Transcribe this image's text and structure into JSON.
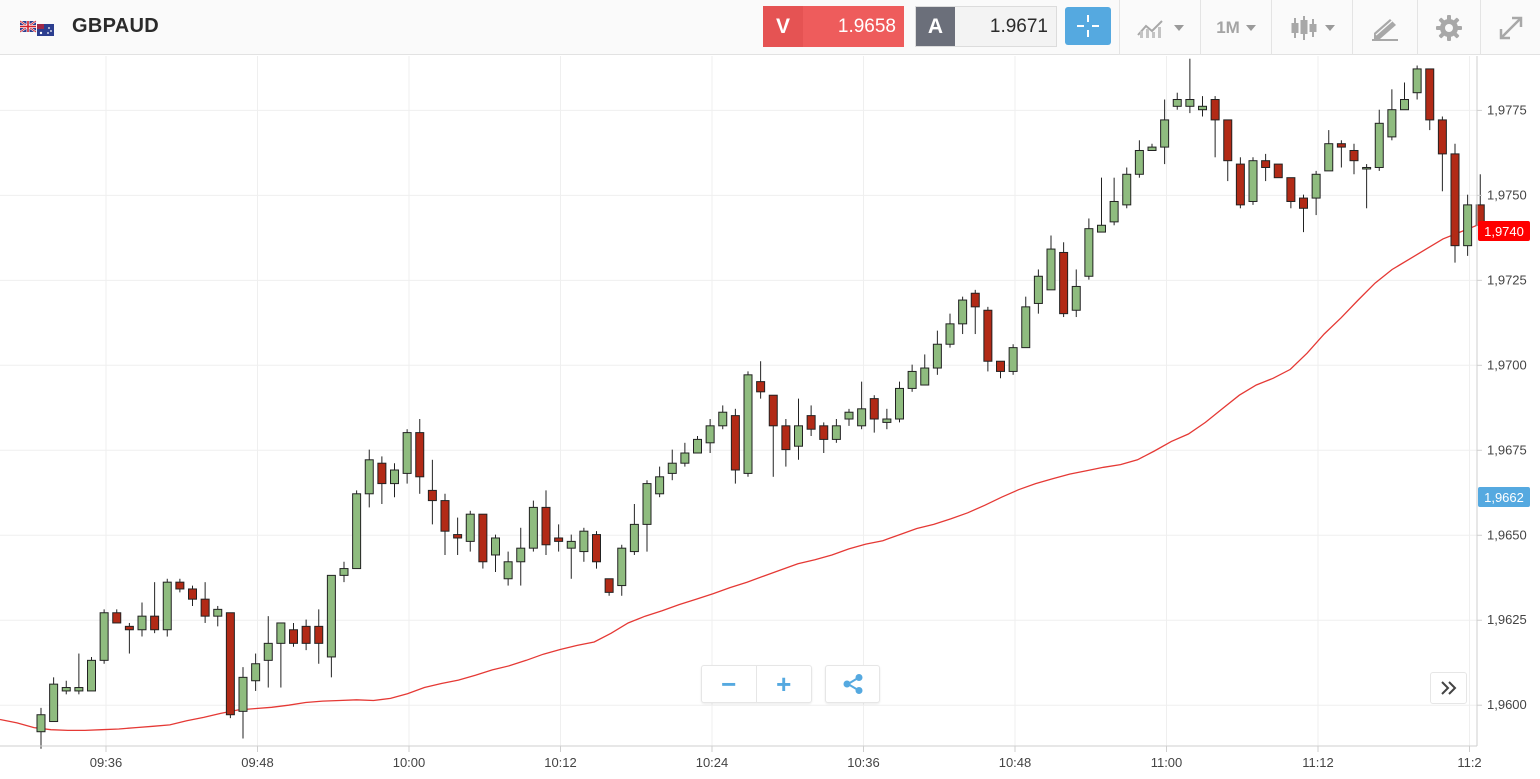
{
  "header": {
    "symbol": "GBPAUD",
    "flag_icon": "gb-au-flag-icon"
  },
  "quotes": {
    "sell": {
      "tag": "V",
      "value": "1.9658",
      "color": "#ee5c5c"
    },
    "buy": {
      "tag": "A",
      "value": "1.9671",
      "color": "#6b6f7a"
    }
  },
  "toolbar": {
    "crosshair_icon": "crosshair-icon",
    "indicators_icon": "indicators-icon",
    "timeframe": "1M",
    "chart_type_icon": "candlestick-icon",
    "drawing_icon": "drawing-tools-icon",
    "settings_icon": "gear-icon",
    "fullscreen_icon": "fullscreen-icon",
    "accent": "#55a9e0"
  },
  "badges": {
    "ma_value": "1,9740",
    "ma_color": "#ff0000",
    "current_value": "1,9662",
    "current_color": "#55a9e0"
  },
  "controls": {
    "zoom_out": "−",
    "zoom_in": "+",
    "share_icon": "share-icon",
    "scroll_end_icon": "double-chevron-right-icon"
  },
  "chart_data": {
    "type": "candlestick",
    "instrument": "GBPAUD",
    "interval": "1M",
    "y_ticks": [
      "1,9600",
      "1,9625",
      "1,9650",
      "1,9675",
      "1,9700",
      "1,9725",
      "1,9750",
      "1,9775"
    ],
    "x_ticks": [
      "09:36",
      "09:48",
      "10:00",
      "10:12",
      "10:24",
      "10:36",
      "10:48",
      "11:00",
      "11:12",
      "11:2"
    ],
    "ylim": [
      1.9588,
      1.9791
    ],
    "colors": {
      "up": "#8fbc7f",
      "down": "#b22a16",
      "ma": "#e53935"
    },
    "candles": [
      [
        1.95922,
        1.95972,
        1.95872,
        1.95992
      ],
      [
        1.95952,
        1.96062,
        1.95952,
        1.96082
      ],
      [
        1.96042,
        1.96052,
        1.96032,
        1.96072
      ],
      [
        1.96042,
        1.96052,
        1.96032,
        1.96152
      ],
      [
        1.96042,
        1.96132,
        1.96042,
        1.96142
      ],
      [
        1.96132,
        1.96272,
        1.96122,
        1.96282
      ],
      [
        1.96272,
        1.96242,
        1.96242,
        1.96282
      ],
      [
        1.96232,
        1.96222,
        1.96152,
        1.96242
      ],
      [
        1.96222,
        1.96262,
        1.96202,
        1.96302
      ],
      [
        1.96262,
        1.96222,
        1.96212,
        1.96362
      ],
      [
        1.96222,
        1.96362,
        1.96202,
        1.96372
      ],
      [
        1.96362,
        1.96342,
        1.96332,
        1.96372
      ],
      [
        1.96342,
        1.96312,
        1.96292,
        1.96352
      ],
      [
        1.96312,
        1.96262,
        1.96242,
        1.96362
      ],
      [
        1.96262,
        1.96282,
        1.96232,
        1.96292
      ],
      [
        1.96272,
        1.95972,
        1.95962,
        1.96272
      ],
      [
        1.95982,
        1.96082,
        1.95902,
        1.96112
      ],
      [
        1.96072,
        1.96122,
        1.96042,
        1.96152
      ],
      [
        1.96132,
        1.96182,
        1.96052,
        1.96262
      ],
      [
        1.96182,
        1.96242,
        1.96052,
        1.96242
      ],
      [
        1.96222,
        1.96182,
        1.96172,
        1.96242
      ],
      [
        1.96232,
        1.96182,
        1.96162,
        1.96252
      ],
      [
        1.96232,
        1.96182,
        1.96122,
        1.96282
      ],
      [
        1.96142,
        1.96382,
        1.96082,
        1.96382
      ],
      [
        1.96382,
        1.96402,
        1.96362,
        1.96422
      ],
      [
        1.96402,
        1.96622,
        1.96402,
        1.96632
      ],
      [
        1.96622,
        1.96722,
        1.96582,
        1.96752
      ],
      [
        1.96712,
        1.96652,
        1.96592,
        1.96732
      ],
      [
        1.96652,
        1.96692,
        1.96612,
        1.96712
      ],
      [
        1.96682,
        1.96802,
        1.96652,
        1.96812
      ],
      [
        1.96802,
        1.96672,
        1.96622,
        1.96842
      ],
      [
        1.96632,
        1.96602,
        1.96532,
        1.96722
      ],
      [
        1.96602,
        1.96512,
        1.96442,
        1.96622
      ],
      [
        1.96502,
        1.96492,
        1.96442,
        1.96552
      ],
      [
        1.96482,
        1.96562,
        1.96452,
        1.96572
      ],
      [
        1.96562,
        1.96422,
        1.96402,
        1.96562
      ],
      [
        1.96442,
        1.96492,
        1.96392,
        1.96502
      ],
      [
        1.96372,
        1.96422,
        1.96352,
        1.96452
      ],
      [
        1.96422,
        1.96462,
        1.96352,
        1.96522
      ],
      [
        1.96462,
        1.96582,
        1.96452,
        1.96602
      ],
      [
        1.96582,
        1.96472,
        1.96442,
        1.96632
      ],
      [
        1.96492,
        1.96482,
        1.96452,
        1.96532
      ],
      [
        1.96462,
        1.96482,
        1.96372,
        1.96502
      ],
      [
        1.96452,
        1.96512,
        1.96422,
        1.96522
      ],
      [
        1.96502,
        1.96422,
        1.96402,
        1.96512
      ],
      [
        1.96372,
        1.96332,
        1.96322,
        1.96372
      ],
      [
        1.96352,
        1.96462,
        1.96322,
        1.96472
      ],
      [
        1.96452,
        1.96532,
        1.96442,
        1.96592
      ],
      [
        1.96532,
        1.96652,
        1.96452,
        1.96662
      ],
      [
        1.96622,
        1.96672,
        1.96612,
        1.96702
      ],
      [
        1.96682,
        1.96712,
        1.96662,
        1.96752
      ],
      [
        1.96712,
        1.96742,
        1.96702,
        1.96772
      ],
      [
        1.96742,
        1.96782,
        1.96742,
        1.96792
      ],
      [
        1.96772,
        1.96822,
        1.96742,
        1.96842
      ],
      [
        1.96822,
        1.96862,
        1.96812,
        1.96882
      ],
      [
        1.96852,
        1.96692,
        1.96652,
        1.96872
      ],
      [
        1.96682,
        1.96972,
        1.96672,
        1.96982
      ],
      [
        1.96952,
        1.96922,
        1.96902,
        1.97012
      ],
      [
        1.96912,
        1.96822,
        1.96672,
        1.96912
      ],
      [
        1.96822,
        1.96752,
        1.96702,
        1.96842
      ],
      [
        1.96762,
        1.96822,
        1.96722,
        1.96902
      ],
      [
        1.96852,
        1.96812,
        1.96792,
        1.96882
      ],
      [
        1.96822,
        1.96782,
        1.96742,
        1.96832
      ],
      [
        1.96782,
        1.96822,
        1.96772,
        1.96842
      ],
      [
        1.96842,
        1.96862,
        1.96822,
        1.96872
      ],
      [
        1.96822,
        1.96872,
        1.96812,
        1.96952
      ],
      [
        1.96902,
        1.96842,
        1.96802,
        1.96912
      ],
      [
        1.96832,
        1.96842,
        1.96812,
        1.96872
      ],
      [
        1.96842,
        1.96932,
        1.96832,
        1.96952
      ],
      [
        1.96932,
        1.96982,
        1.96922,
        1.97002
      ],
      [
        1.96942,
        1.96992,
        1.96942,
        1.97032
      ],
      [
        1.96992,
        1.97062,
        1.96972,
        1.97102
      ],
      [
        1.97062,
        1.97122,
        1.97052,
        1.97152
      ],
      [
        1.97122,
        1.97192,
        1.97092,
        1.97202
      ],
      [
        1.97212,
        1.97172,
        1.97092,
        1.97222
      ],
      [
        1.97162,
        1.97012,
        1.96982,
        1.97172
      ],
      [
        1.97012,
        1.96982,
        1.96962,
        1.97012
      ],
      [
        1.96982,
        1.97052,
        1.96972,
        1.97062
      ],
      [
        1.97052,
        1.97172,
        1.97052,
        1.97202
      ],
      [
        1.97182,
        1.97262,
        1.97152,
        1.97282
      ],
      [
        1.97222,
        1.97342,
        1.97222,
        1.97382
      ],
      [
        1.97332,
        1.97152,
        1.97142,
        1.97362
      ],
      [
        1.97162,
        1.97232,
        1.97142,
        1.97282
      ],
      [
        1.97262,
        1.97402,
        1.97252,
        1.97432
      ],
      [
        1.97392,
        1.97412,
        1.97392,
        1.97552
      ],
      [
        1.97422,
        1.97482,
        1.97412,
        1.97552
      ],
      [
        1.97472,
        1.97562,
        1.97462,
        1.97582
      ],
      [
        1.97562,
        1.97632,
        1.97552,
        1.97662
      ],
      [
        1.97632,
        1.97642,
        1.97632,
        1.97652
      ],
      [
        1.97642,
        1.97722,
        1.97592,
        1.97782
      ],
      [
        1.97762,
        1.97782,
        1.97752,
        1.97802
      ],
      [
        1.97762,
        1.97782,
        1.97742,
        1.97902
      ],
      [
        1.97752,
        1.97762,
        1.97732,
        1.97792
      ],
      [
        1.97782,
        1.97722,
        1.97612,
        1.97792
      ],
      [
        1.97722,
        1.97602,
        1.97542,
        1.97722
      ],
      [
        1.97592,
        1.97472,
        1.97462,
        1.97612
      ],
      [
        1.97482,
        1.97602,
        1.97472,
        1.97612
      ],
      [
        1.97602,
        1.97582,
        1.97542,
        1.97622
      ],
      [
        1.97592,
        1.97552,
        1.97552,
        1.97592
      ],
      [
        1.97552,
        1.97482,
        1.97462,
        1.97552
      ],
      [
        1.97492,
        1.97462,
        1.97392,
        1.97502
      ],
      [
        1.97492,
        1.97562,
        1.97442,
        1.97572
      ],
      [
        1.97572,
        1.97652,
        1.97572,
        1.97692
      ],
      [
        1.97652,
        1.97642,
        1.97582,
        1.97662
      ],
      [
        1.97632,
        1.97602,
        1.97562,
        1.97652
      ],
      [
        1.97582,
        1.97582,
        1.97462,
        1.97592
      ],
      [
        1.97582,
        1.97712,
        1.97572,
        1.97752
      ],
      [
        1.97672,
        1.97752,
        1.97662,
        1.97812
      ],
      [
        1.97752,
        1.97782,
        1.97752,
        1.97832
      ],
      [
        1.97802,
        1.97872,
        1.97782,
        1.97882
      ],
      [
        1.97872,
        1.97722,
        1.97692,
        1.97872
      ],
      [
        1.97722,
        1.97622,
        1.97512,
        1.97732
      ],
      [
        1.97622,
        1.97352,
        1.97302,
        1.97652
      ],
      [
        1.97352,
        1.97472,
        1.97322,
        1.97502
      ],
      [
        1.97472,
        1.97412,
        1.97412,
        1.97562
      ]
    ],
    "ma_series": [
      1.95958,
      1.95948,
      1.95934,
      1.95928,
      1.95926,
      1.95926,
      1.95928,
      1.9593,
      1.95934,
      1.95938,
      1.95942,
      1.95954,
      1.95964,
      1.95976,
      1.95986,
      1.9599,
      1.95994,
      1.96,
      1.96008,
      1.96012,
      1.96014,
      1.96016,
      1.96014,
      1.9602,
      1.96034,
      1.96052,
      1.96064,
      1.96074,
      1.96088,
      1.96104,
      1.96116,
      1.96132,
      1.9615,
      1.96164,
      1.96176,
      1.96186,
      1.96212,
      1.96242,
      1.96262,
      1.96278,
      1.96296,
      1.96312,
      1.96328,
      1.96346,
      1.96362,
      1.9638,
      1.96398,
      1.96416,
      1.96428,
      1.96442,
      1.9646,
      1.96474,
      1.96484,
      1.96502,
      1.9652,
      1.96532,
      1.96548,
      1.96566,
      1.96588,
      1.96612,
      1.96634,
      1.96652,
      1.96666,
      1.9668,
      1.9669,
      1.967,
      1.96708,
      1.96722,
      1.96748,
      1.96776,
      1.96798,
      1.96832,
      1.96872,
      1.96912,
      1.96942,
      1.96962,
      1.96988,
      1.97036,
      1.97092,
      1.9714,
      1.97192,
      1.97242,
      1.97282,
      1.97312,
      1.97342,
      1.97372,
      1.97392,
      1.97412
    ]
  }
}
